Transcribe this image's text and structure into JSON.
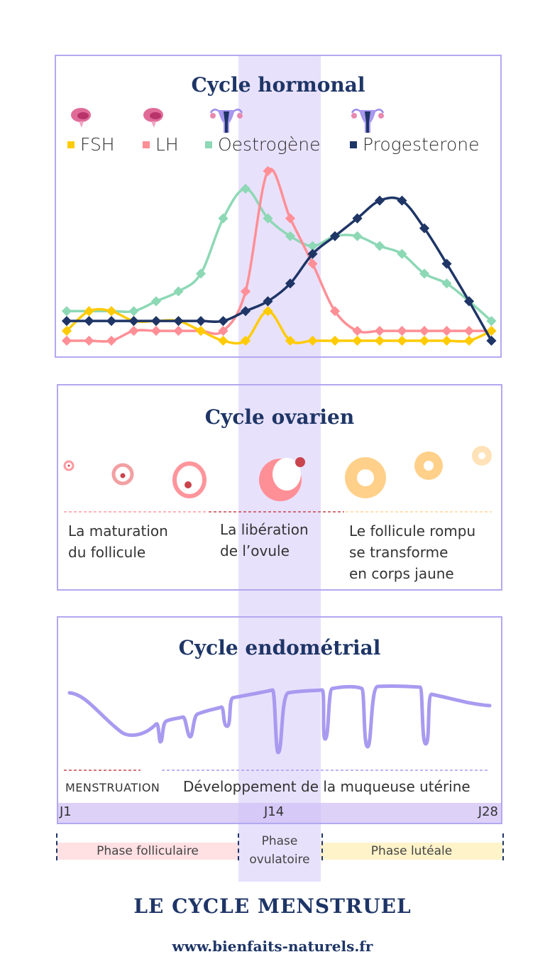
{
  "page": {
    "footer_title": "LE CYCLE MENSTRUEL",
    "footer_url": "www.bienfaits-naturels.fr",
    "colors": {
      "band": "#e8e1fc",
      "border": "#b3a8f0",
      "title": "#1e3566",
      "fsh": "#ffcb05",
      "lh": "#ff8f96",
      "oestrogene": "#8dd8b5",
      "progesterone": "#1e3566",
      "endometrium": "#a99af0"
    }
  },
  "hormonal": {
    "title": "Cycle hormonal",
    "legend": [
      {
        "label": "FSH",
        "color": "#ffcb05",
        "icon": "brain-icon"
      },
      {
        "label": "LH",
        "color": "#ff8f96",
        "icon": "brain-icon"
      },
      {
        "label": "Oestrogène",
        "color": "#8dd8b5",
        "icon": "uterus-icon"
      },
      {
        "label": "Progesterone",
        "color": "#1e3566",
        "icon": "uterus-icon"
      }
    ]
  },
  "chart_data": {
    "type": "line",
    "title": "Cycle hormonal",
    "xlabel": "",
    "ylabel": "",
    "x": [
      1,
      2,
      3,
      4,
      5,
      6,
      7,
      8,
      9,
      10,
      11,
      12,
      13,
      14,
      15,
      16,
      17,
      18,
      19,
      20
    ],
    "ylim": [
      0,
      100
    ],
    "grid": false,
    "legend_position": "top",
    "series": [
      {
        "name": "FSH",
        "color": "#ffcb05",
        "values": [
          14,
          24,
          24,
          19,
          19,
          19,
          14,
          9,
          9,
          24,
          9,
          9,
          9,
          9,
          9,
          9,
          9,
          9,
          9,
          14
        ]
      },
      {
        "name": "LH",
        "color": "#ff8f96",
        "values": [
          9,
          9,
          9,
          14,
          14,
          14,
          14,
          14,
          34,
          95,
          71,
          48,
          24,
          14,
          14,
          14,
          14,
          14,
          14,
          14
        ]
      },
      {
        "name": "Oestrogène",
        "color": "#8dd8b5",
        "values": [
          24,
          24,
          24,
          24,
          29,
          34,
          43,
          71,
          86,
          71,
          62,
          57,
          62,
          62,
          57,
          53,
          43,
          38,
          29,
          19
        ]
      },
      {
        "name": "Progesterone",
        "color": "#1e3566",
        "values": [
          19,
          19,
          19,
          19,
          19,
          19,
          19,
          19,
          24,
          29,
          38,
          53,
          62,
          71,
          80,
          80,
          66,
          48,
          29,
          9
        ]
      }
    ]
  },
  "ovarien": {
    "title": "Cycle ovarien",
    "labels": [
      {
        "line1": "La maturation",
        "line2": "du follicule"
      },
      {
        "line1": "La libération",
        "line2": "de l’ovule"
      },
      {
        "line1": "Le follicule rompu",
        "line2": "se transforme",
        "line3": "en corps jaune"
      }
    ],
    "arrow_colors": [
      "#ff9aa0",
      "#c9444c",
      "#ffd59a"
    ]
  },
  "endometrial": {
    "title": "Cycle endométrial",
    "menstruation_label": "MENSTRUATION",
    "development_label": "Développement de la muqueuse utérine",
    "axis": {
      "start": "J1",
      "middle": "J14",
      "end": "J28"
    }
  },
  "phases": {
    "follicular": {
      "label": "Phase folliculaire",
      "color": "#ffe0e3"
    },
    "ovulatory": {
      "line1": "Phase",
      "line2": "ovulatoire"
    },
    "luteal": {
      "label": "Phase lutéale",
      "color": "#fff3c9"
    }
  }
}
